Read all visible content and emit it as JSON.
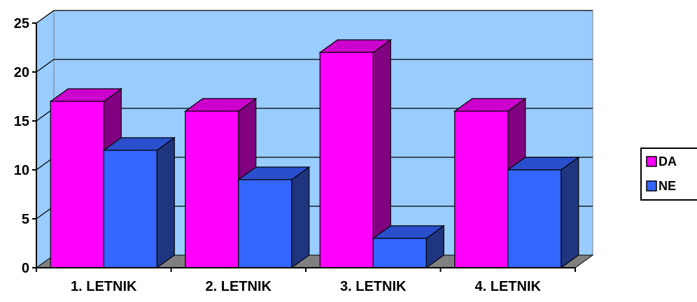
{
  "chart_data": {
    "type": "bar",
    "style": "3d-clustered-column",
    "categories": [
      "1. LETNIK",
      "2. LETNIK",
      "3. LETNIK",
      "4. LETNIK"
    ],
    "series": [
      {
        "name": "DA",
        "values": [
          17,
          16,
          22,
          16
        ],
        "color": "#ff00ff",
        "side_color": "#800080",
        "top_color": "#cc00cc"
      },
      {
        "name": "NE",
        "values": [
          12,
          9,
          3,
          10
        ],
        "color": "#3366ff",
        "side_color": "#1f357f",
        "top_color": "#2a4fcc"
      }
    ],
    "y_ticks": [
      "0",
      "5",
      "10",
      "15",
      "20",
      "25"
    ],
    "ylim": [
      0,
      25
    ],
    "grid": true,
    "plot_background": "#99ccff",
    "floor_color": "#808080",
    "legend_position": "right",
    "title": "",
    "xlabel": "",
    "ylabel": ""
  }
}
